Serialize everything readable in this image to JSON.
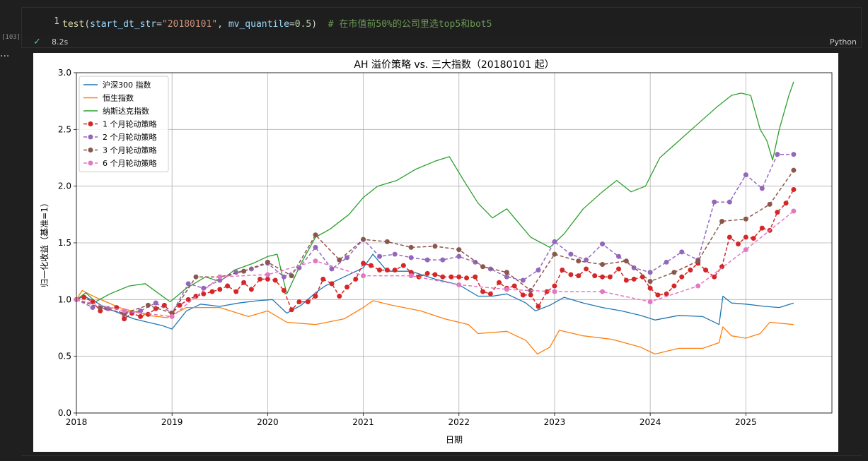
{
  "cell": {
    "line_number": "1",
    "code": {
      "fn": "test",
      "p1": "start_dt_str",
      "s1": "\"20180101\"",
      "p2": "mv_quantile",
      "n1": "0.5",
      "comment": "# 在市值前50%的公司里选top5和bot5"
    },
    "execution_count": "[103]",
    "status_icon": "check-icon",
    "exec_time": "8.2s",
    "language": "Python"
  },
  "more_glyph": "···",
  "colors": {
    "background": "#1f1f1f",
    "output_bg": "#ffffff",
    "accent_check": "#4ec9b0"
  },
  "chart_data": {
    "type": "line",
    "title": "AH 溢价策略 vs. 三大指数（20180101 起）",
    "xlabel": "日期",
    "ylabel": "归一化收益（基准=1）",
    "ylim": [
      0,
      3.0
    ],
    "xlim": [
      2018.0,
      2025.9
    ],
    "xticks": [
      "2018",
      "2019",
      "2020",
      "2021",
      "2022",
      "2023",
      "2024",
      "2025"
    ],
    "yticks": [
      "0.0",
      "0.5",
      "1.0",
      "1.5",
      "2.0",
      "2.5",
      "3.0"
    ],
    "grid": true,
    "legend_position": "top-left",
    "series": [
      {
        "name": "沪深300 指数",
        "color": "#1f77b4",
        "style": "solid",
        "x": [
          2018.0,
          2018.08,
          2018.2,
          2018.3,
          2018.45,
          2018.6,
          2018.75,
          2018.9,
          2019.0,
          2019.15,
          2019.3,
          2019.5,
          2019.7,
          2019.9,
          2020.05,
          2020.2,
          2020.35,
          2020.5,
          2020.6,
          2020.8,
          2021.0,
          2021.1,
          2021.25,
          2021.5,
          2021.75,
          2022.0,
          2022.2,
          2022.35,
          2022.5,
          2022.7,
          2022.8,
          2022.95,
          2023.1,
          2023.3,
          2023.5,
          2023.7,
          2023.9,
          2024.05,
          2024.3,
          2024.55,
          2024.72,
          2024.76,
          2024.85,
          2025.0,
          2025.2,
          2025.35,
          2025.5
        ],
        "y": [
          1.0,
          1.03,
          0.98,
          0.93,
          0.88,
          0.83,
          0.8,
          0.77,
          0.74,
          0.9,
          0.96,
          0.94,
          0.97,
          0.99,
          1.0,
          0.88,
          0.95,
          1.06,
          1.12,
          1.2,
          1.28,
          1.4,
          1.25,
          1.25,
          1.18,
          1.13,
          1.03,
          1.03,
          1.05,
          0.97,
          0.9,
          0.95,
          1.02,
          0.97,
          0.93,
          0.9,
          0.86,
          0.82,
          0.86,
          0.85,
          0.78,
          1.03,
          0.97,
          0.96,
          0.94,
          0.93,
          0.97
        ]
      },
      {
        "name": "恒生指数",
        "color": "#ff7f0e",
        "style": "solid",
        "x": [
          2018.0,
          2018.06,
          2018.2,
          2018.45,
          2018.75,
          2018.95,
          2019.15,
          2019.5,
          2019.8,
          2020.0,
          2020.2,
          2020.5,
          2020.8,
          2021.0,
          2021.1,
          2021.3,
          2021.6,
          2021.85,
          2022.1,
          2022.2,
          2022.5,
          2022.7,
          2022.82,
          2022.95,
          2023.05,
          2023.3,
          2023.6,
          2023.9,
          2024.05,
          2024.3,
          2024.55,
          2024.72,
          2024.76,
          2024.85,
          2025.0,
          2025.15,
          2025.25,
          2025.5
        ],
        "y": [
          1.0,
          1.08,
          1.02,
          0.93,
          0.86,
          0.84,
          0.93,
          0.93,
          0.85,
          0.9,
          0.8,
          0.78,
          0.83,
          0.93,
          0.99,
          0.95,
          0.9,
          0.83,
          0.78,
          0.7,
          0.72,
          0.64,
          0.52,
          0.58,
          0.73,
          0.68,
          0.65,
          0.58,
          0.52,
          0.57,
          0.57,
          0.62,
          0.76,
          0.68,
          0.66,
          0.7,
          0.8,
          0.78
        ]
      },
      {
        "name": "纳斯达克指数",
        "color": "#2ca02c",
        "style": "solid",
        "x": [
          2018.0,
          2018.1,
          2018.2,
          2018.35,
          2018.55,
          2018.72,
          2018.85,
          2018.98,
          2019.15,
          2019.35,
          2019.5,
          2019.65,
          2019.85,
          2020.0,
          2020.1,
          2020.2,
          2020.35,
          2020.5,
          2020.65,
          2020.85,
          2021.0,
          2021.15,
          2021.35,
          2021.55,
          2021.75,
          2021.9,
          2022.05,
          2022.2,
          2022.35,
          2022.5,
          2022.65,
          2022.75,
          2022.95,
          2023.1,
          2023.3,
          2023.5,
          2023.65,
          2023.8,
          2023.95,
          2024.1,
          2024.3,
          2024.5,
          2024.7,
          2024.85,
          2024.95,
          2025.05,
          2025.15,
          2025.22,
          2025.28,
          2025.35,
          2025.45,
          2025.5
        ],
        "y": [
          1.0,
          1.06,
          0.98,
          1.05,
          1.12,
          1.14,
          1.06,
          0.98,
          1.1,
          1.2,
          1.16,
          1.26,
          1.32,
          1.38,
          1.4,
          1.05,
          1.32,
          1.55,
          1.62,
          1.75,
          1.9,
          2.0,
          2.05,
          2.15,
          2.22,
          2.26,
          2.05,
          1.85,
          1.72,
          1.8,
          1.65,
          1.55,
          1.46,
          1.58,
          1.8,
          1.95,
          2.05,
          1.95,
          2.0,
          2.25,
          2.4,
          2.55,
          2.7,
          2.8,
          2.82,
          2.8,
          2.5,
          2.4,
          2.23,
          2.5,
          2.8,
          2.92
        ]
      },
      {
        "name": "1 个月轮动策略",
        "color": "#d62728",
        "style": "dashed",
        "marker": 3.5,
        "x": [
          2018.0,
          2018.08,
          2018.17,
          2018.25,
          2018.33,
          2018.42,
          2018.5,
          2018.58,
          2018.67,
          2018.75,
          2018.83,
          2018.92,
          2019.0,
          2019.08,
          2019.17,
          2019.25,
          2019.33,
          2019.42,
          2019.5,
          2019.58,
          2019.67,
          2019.75,
          2019.83,
          2019.92,
          2020.0,
          2020.08,
          2020.17,
          2020.25,
          2020.33,
          2020.42,
          2020.5,
          2020.58,
          2020.67,
          2020.75,
          2020.83,
          2020.92,
          2021.0,
          2021.08,
          2021.17,
          2021.25,
          2021.33,
          2021.42,
          2021.5,
          2021.58,
          2021.67,
          2021.75,
          2021.83,
          2021.92,
          2022.0,
          2022.08,
          2022.17,
          2022.25,
          2022.33,
          2022.42,
          2022.5,
          2022.58,
          2022.67,
          2022.75,
          2022.83,
          2022.92,
          2023.0,
          2023.08,
          2023.17,
          2023.25,
          2023.33,
          2023.42,
          2023.5,
          2023.58,
          2023.67,
          2023.75,
          2023.83,
          2023.92,
          2024.0,
          2024.08,
          2024.17,
          2024.25,
          2024.33,
          2024.42,
          2024.5,
          2024.58,
          2024.67,
          2024.75,
          2024.83,
          2024.92,
          2025.0,
          2025.08,
          2025.17,
          2025.25,
          2025.33,
          2025.42,
          2025.5
        ],
        "y": [
          1.0,
          1.02,
          0.98,
          0.9,
          0.92,
          0.93,
          0.83,
          0.88,
          0.85,
          0.87,
          0.92,
          0.95,
          0.88,
          0.95,
          1.0,
          1.03,
          1.05,
          1.07,
          1.09,
          1.12,
          1.07,
          1.15,
          1.09,
          1.18,
          1.18,
          1.17,
          1.08,
          0.91,
          0.98,
          0.98,
          1.03,
          1.18,
          1.14,
          1.03,
          1.11,
          1.18,
          1.32,
          1.3,
          1.26,
          1.26,
          1.26,
          1.3,
          1.24,
          1.2,
          1.23,
          1.22,
          1.2,
          1.2,
          1.2,
          1.19,
          1.2,
          1.07,
          1.05,
          1.15,
          1.1,
          1.12,
          1.04,
          1.04,
          0.94,
          1.07,
          1.12,
          1.26,
          1.22,
          1.21,
          1.27,
          1.21,
          1.2,
          1.2,
          1.27,
          1.17,
          1.18,
          1.2,
          1.1,
          1.04,
          1.05,
          1.12,
          1.2,
          1.26,
          1.32,
          1.26,
          1.2,
          1.29,
          1.55,
          1.49,
          1.55,
          1.54,
          1.63,
          1.61,
          1.77,
          1.85,
          1.97
        ]
      },
      {
        "name": "2 个月轮动策略",
        "color": "#9467bd",
        "style": "dashed",
        "marker": 3.5,
        "x": [
          2018.0,
          2018.17,
          2018.33,
          2018.5,
          2018.67,
          2018.83,
          2019.0,
          2019.17,
          2019.33,
          2019.5,
          2019.67,
          2019.83,
          2020.0,
          2020.17,
          2020.33,
          2020.5,
          2020.67,
          2020.83,
          2021.0,
          2021.17,
          2021.33,
          2021.5,
          2021.67,
          2021.83,
          2022.0,
          2022.17,
          2022.33,
          2022.5,
          2022.67,
          2022.83,
          2023.0,
          2023.17,
          2023.33,
          2023.5,
          2023.67,
          2023.83,
          2024.0,
          2024.17,
          2024.33,
          2024.5,
          2024.67,
          2024.83,
          2025.0,
          2025.17,
          2025.33,
          2025.5
        ],
        "y": [
          1.0,
          0.93,
          0.92,
          0.87,
          0.9,
          0.97,
          0.88,
          1.14,
          1.1,
          1.17,
          1.24,
          1.27,
          1.32,
          1.2,
          1.28,
          1.46,
          1.27,
          1.37,
          1.53,
          1.38,
          1.4,
          1.37,
          1.35,
          1.35,
          1.38,
          1.33,
          1.27,
          1.2,
          1.17,
          1.26,
          1.51,
          1.4,
          1.35,
          1.49,
          1.38,
          1.28,
          1.24,
          1.33,
          1.42,
          1.35,
          1.86,
          1.86,
          2.1,
          1.98,
          2.28,
          2.28
        ]
      },
      {
        "name": "3 个月轮动策略",
        "color": "#8c564b",
        "style": "dashed",
        "marker": 3.5,
        "x": [
          2018.0,
          2018.25,
          2018.5,
          2018.75,
          2019.0,
          2019.25,
          2019.5,
          2019.75,
          2020.0,
          2020.25,
          2020.5,
          2020.75,
          2021.0,
          2021.25,
          2021.5,
          2021.75,
          2022.0,
          2022.25,
          2022.5,
          2022.75,
          2023.0,
          2023.25,
          2023.5,
          2023.75,
          2024.0,
          2024.25,
          2024.5,
          2024.75,
          2025.0,
          2025.25,
          2025.5
        ],
        "y": [
          1.0,
          0.93,
          0.88,
          0.95,
          0.88,
          1.2,
          1.2,
          1.25,
          1.33,
          1.21,
          1.57,
          1.35,
          1.53,
          1.51,
          1.46,
          1.47,
          1.44,
          1.29,
          1.24,
          1.08,
          1.4,
          1.34,
          1.31,
          1.34,
          1.16,
          1.24,
          1.34,
          1.69,
          1.71,
          1.84,
          2.14
        ]
      },
      {
        "name": "6 个月轮动策略",
        "color": "#e377c2",
        "style": "dashed",
        "marker": 3.5,
        "x": [
          2018.0,
          2018.5,
          2019.0,
          2019.5,
          2020.0,
          2020.5,
          2021.0,
          2021.5,
          2022.0,
          2022.5,
          2023.0,
          2023.5,
          2024.0,
          2024.5,
          2025.0,
          2025.5
        ],
        "y": [
          1.0,
          0.9,
          0.85,
          1.2,
          1.22,
          1.34,
          1.21,
          1.21,
          1.13,
          1.09,
          1.07,
          1.07,
          0.98,
          1.12,
          1.44,
          1.78
        ]
      }
    ]
  }
}
